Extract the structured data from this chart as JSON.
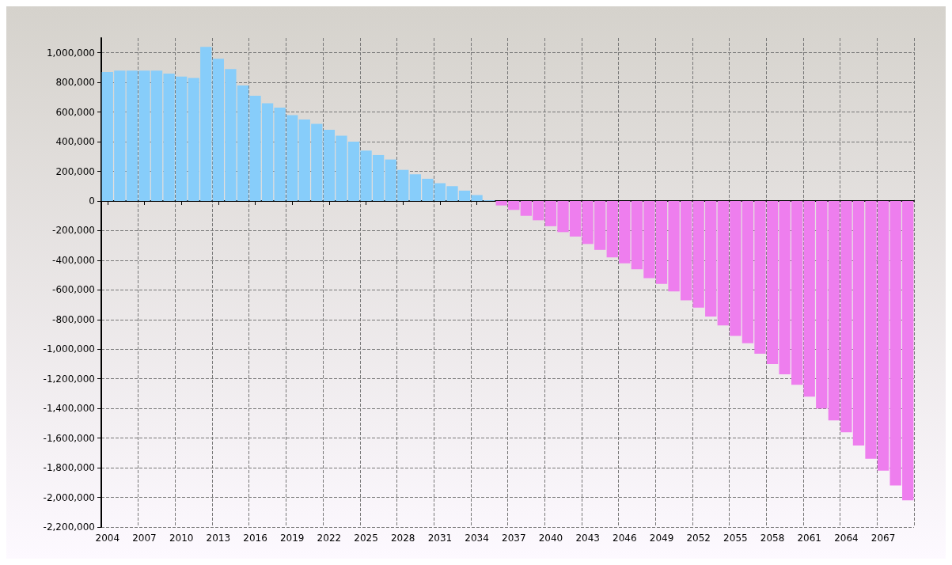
{
  "chart_data": {
    "type": "bar",
    "categories": [
      "2004",
      null,
      null,
      "2007",
      null,
      null,
      "2010",
      null,
      null,
      "2013",
      null,
      null,
      "2016",
      null,
      null,
      "2019",
      null,
      null,
      "2022",
      null,
      null,
      "2025",
      null,
      null,
      "2028",
      null,
      null,
      "2031",
      null,
      null,
      "2034",
      null,
      null,
      "2037",
      null,
      null,
      "2040",
      null,
      null,
      "2043",
      null,
      null,
      "2046",
      null,
      null,
      "2049",
      null,
      null,
      "2052",
      null,
      null,
      "2055",
      null,
      null,
      "2058",
      null,
      null,
      "2061",
      null,
      null,
      "2064",
      null,
      null,
      "2067",
      null,
      null
    ],
    "values": [
      870000,
      880000,
      880000,
      880000,
      880000,
      860000,
      840000,
      830000,
      1040000,
      960000,
      890000,
      780000,
      710000,
      660000,
      630000,
      580000,
      550000,
      520000,
      480000,
      440000,
      400000,
      340000,
      310000,
      280000,
      210000,
      180000,
      150000,
      120000,
      100000,
      70000,
      40000,
      5000,
      -30000,
      -60000,
      -100000,
      -130000,
      -170000,
      -210000,
      -240000,
      -290000,
      -330000,
      -380000,
      -420000,
      -460000,
      -520000,
      -560000,
      -610000,
      -670000,
      -720000,
      -780000,
      -840000,
      -910000,
      -960000,
      -1030000,
      -1100000,
      -1170000,
      -1240000,
      -1320000,
      -1400000,
      -1480000,
      -1560000,
      -1650000,
      -1740000,
      -1820000,
      -1920000,
      -2020000
    ],
    "colors": [
      "#87cdfa",
      "#87cdfa",
      "#87cdfa",
      "#87cdfa",
      "#87cdfa",
      "#87cdfa",
      "#87cdfa",
      "#87cdfa",
      "#87cdfa",
      "#87cdfa",
      "#87cdfa",
      "#87cdfa",
      "#87cdfa",
      "#87cdfa",
      "#87cdfa",
      "#87cdfa",
      "#87cdfa",
      "#87cdfa",
      "#87cdfa",
      "#87cdfa",
      "#87cdfa",
      "#87cdfa",
      "#87cdfa",
      "#87cdfa",
      "#87cdfa",
      "#87cdfa",
      "#87cdfa",
      "#87cdfa",
      "#87cdfa",
      "#87cdfa",
      "#87cdfa",
      "#87cdfa",
      "#ee7eee",
      "#ee7eee",
      "#ee7eee",
      "#ee7eee",
      "#ee7eee",
      "#ee7eee",
      "#ee7eee",
      "#ee7eee",
      "#ee7eee",
      "#ee7eee",
      "#ee7eee",
      "#ee7eee",
      "#ee7eee",
      "#ee7eee",
      "#ee7eee",
      "#ee7eee",
      "#ee7eee",
      "#ee7eee",
      "#ee7eee",
      "#ee7eee",
      "#ee7eee",
      "#ee7eee",
      "#ee7eee",
      "#ee7eee",
      "#ee7eee",
      "#ee7eee",
      "#ee7eee",
      "#ee7eee",
      "#ee7eee",
      "#ee7eee",
      "#ee7eee",
      "#ee7eee",
      "#ee7eee",
      "#ee7eee"
    ],
    "ylim": [
      -2200000,
      1100000
    ],
    "yticks": [
      {
        "value": -2200000,
        "label": "-2,200,000"
      },
      {
        "value": -2000000,
        "label": "-2,000,000"
      },
      {
        "value": -1800000,
        "label": "-1,800,000"
      },
      {
        "value": -1600000,
        "label": "-1,600,000"
      },
      {
        "value": -1400000,
        "label": "-1,400,000"
      },
      {
        "value": -1200000,
        "label": "-1,200,000"
      },
      {
        "value": -1000000,
        "label": "-1,000,000"
      },
      {
        "value": -800000,
        "label": "-800,000"
      },
      {
        "value": -600000,
        "label": "-600,000"
      },
      {
        "value": -400000,
        "label": "-400,000"
      },
      {
        "value": -200000,
        "label": "-200,000"
      },
      0,
      {
        "value": 200000,
        "label": "200,000"
      },
      {
        "value": 400000,
        "label": "400,000"
      },
      {
        "value": 600000,
        "label": "600,000"
      },
      {
        "value": 800000,
        "label": "800,000"
      },
      {
        "value": 1000000,
        "label": "1,000,000"
      }
    ],
    "grid": true
  }
}
